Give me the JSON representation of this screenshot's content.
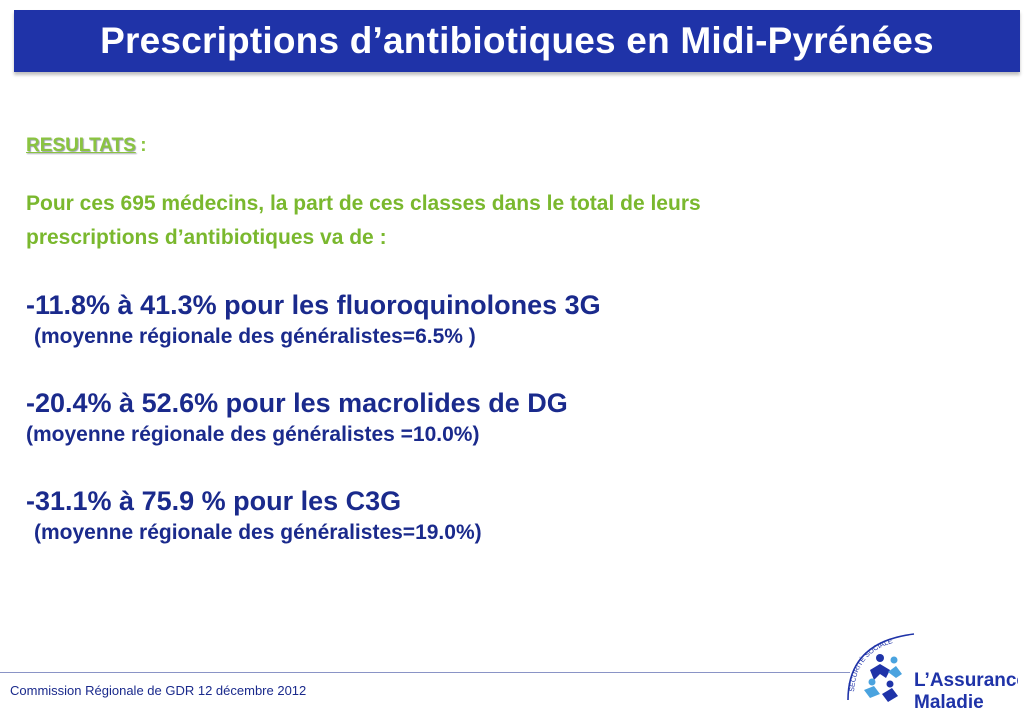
{
  "header": {
    "title": "Prescriptions d’antibiotiques en Midi-Pyrénées"
  },
  "results": {
    "label": "RESULTATS",
    "colon": ":",
    "intro_line1": "Pour ces 695 médecins, la part de ces classes dans le total de leurs",
    "intro_line2": "prescriptions d’antibiotiques va de :"
  },
  "entries": [
    {
      "main": "-11.8% à 41.3% pour les fluoroquinolones 3G",
      "sub": "(moyenne régionale des généralistes=6.5% )"
    },
    {
      "main": "-20.4% à 52.6% pour les macrolides de DG",
      "sub": "(moyenne régionale des généralistes =10.0%)"
    },
    {
      "main": "-31.1% à 75.9 % pour les C3G",
      "sub": "(moyenne régionale des généralistes=19.0%)"
    }
  ],
  "footer": {
    "text": "Commission Régionale de GDR 12 décembre 2012"
  },
  "logo": {
    "line1": "L’Assurance",
    "line2": "Maladie",
    "arc_text": "SÉCURITÉ SOCIALE",
    "icon": "assurance-maladie-logo"
  },
  "colors": {
    "title_bar": "#1f33a8",
    "accent_green": "#8ac43f",
    "text_blue": "#1a2a8c"
  }
}
